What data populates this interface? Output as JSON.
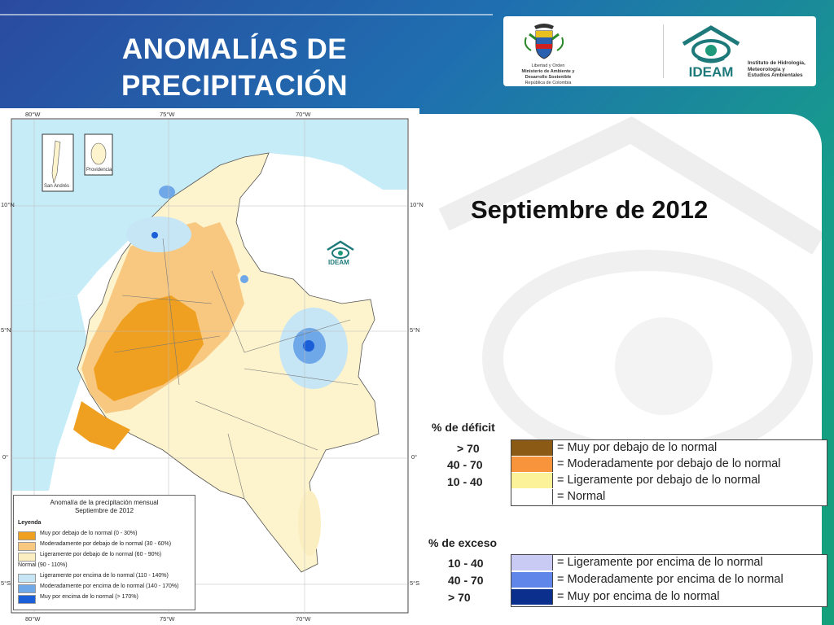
{
  "slide": {
    "title_line1": "ANOMALÍAS DE",
    "title_line2": "PRECIPITACIÓN",
    "subtitle": "Septiembre de 2012"
  },
  "logos": {
    "ministerio_lines": [
      "Libertad y Orden",
      "Ministerio de Ambiente y",
      "Desarrollo Sostenible",
      "República de Colombia"
    ],
    "ideam_acronym": "IDEAM",
    "ideam_full_lines": [
      "Instituto de Hidrología,",
      "Meteorología y",
      "Estudios Ambientales"
    ]
  },
  "legend": {
    "deficit_heading": "% de déficit",
    "deficit_rows": [
      {
        "range": "> 70",
        "label": "= Muy por debajo de lo normal",
        "color": "#8b5a14"
      },
      {
        "range": "40 -  70",
        "label": "= Moderadamente por debajo de lo normal",
        "color": "#f7943c"
      },
      {
        "range": "10 -  40",
        "label": "= Ligeramente por debajo de lo normal",
        "color": "#fbf29a"
      },
      {
        "range": "",
        "label": "= Normal",
        "color": "#ffffff"
      }
    ],
    "excess_heading": "% de exceso",
    "excess_rows": [
      {
        "range": "10 -  40",
        "label": "= Ligeramente por encima de lo normal",
        "color": "#c9cbf4"
      },
      {
        "range": "40 -  70",
        "label": "= Moderadamente por encima de lo normal",
        "color": "#5f86e8"
      },
      {
        "range": "> 70",
        "label": "= Muy por encima de lo normal",
        "color": "#0a2f8c"
      }
    ]
  },
  "map": {
    "inset_labels": {
      "san_andres": "San Andrés",
      "providencia": "Providencia"
    },
    "watermark": "IDEAM",
    "top_axis": [
      "80°W",
      "75°W",
      "70°W"
    ],
    "bottom_axis": [
      "80°W",
      "75°W",
      "70°W"
    ],
    "left_axis": [
      "10°N",
      "5°N",
      "0°",
      "5°S"
    ],
    "right_axis": [
      "10°N",
      "5°N",
      "0°",
      "5°S"
    ],
    "legend_title": "Anomalía de la precipitación mensual",
    "legend_subtitle": "Septiembre de 2012",
    "legend_heading": "Leyenda",
    "legend_items": [
      {
        "label": "Muy por debajo de lo normal (0 - 30%)",
        "color": "#f0a020"
      },
      {
        "label": "Moderadamente por debajo de lo normal (30 - 60%)",
        "color": "#f8c880"
      },
      {
        "label": "Ligeramente por debajo de lo normal (60 - 90%)",
        "color": "#fbeec0"
      },
      {
        "label": "Normal (90 - 110%)",
        "color": "#ffffff"
      },
      {
        "label": "Ligeramente por encima de lo normal (110 - 140%)",
        "color": "#c6e6f6"
      },
      {
        "label": "Moderadamente por encima de lo normal (140 - 170%)",
        "color": "#6fa8e8"
      },
      {
        "label": "Muy por encima de lo normal (> 170%)",
        "color": "#1a5fd8"
      }
    ]
  }
}
